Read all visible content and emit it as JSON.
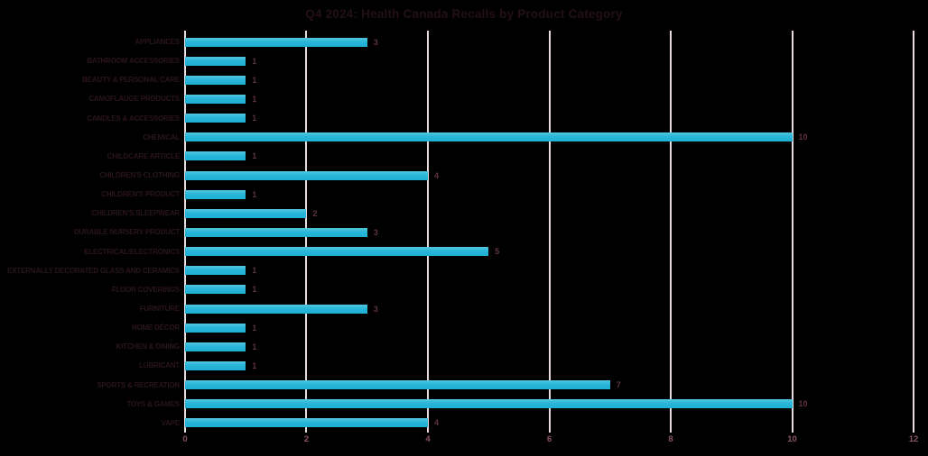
{
  "title": "Q4 2024: Health Canada Recalls by Product Category",
  "colors": {
    "background": "#000000",
    "bar": "#29b6d8",
    "gridline": "#e6dce0",
    "title_text": "#231014",
    "category_label_text": "#2a151b",
    "value_label_text": "#5d3344",
    "axis_label_text": "#8b5468"
  },
  "chart_data": {
    "type": "bar",
    "orientation": "horizontal",
    "title": "Q4 2024: Health Canada Recalls by Product Category",
    "categories": [
      "APPLIANCES",
      "BATHROOM ACCESSORIES",
      "BEAUTY & PERSONAL CARE",
      "CAMOFLAUGE PRODUCTS",
      "CANDLES & ACCESSORIES",
      "CHEMICAL",
      "CHILDCARE ARTICLE",
      "CHILDREN'S CLOTHING",
      "CHILDREN'S PRODUCT",
      "CHILDREN'S SLEEPWEAR",
      "DURABLE NURSERY PRODUCT",
      "ELECTRICAL/ELECTRONICS",
      "EXTERNALLY DECORATED GLASS AND CERAMICS",
      "FLOOR COVERINGS",
      "FURNITURE",
      "HOME DÉCOR",
      "KITCHEN & DINING",
      "LUBRICANT",
      "SPORTS & RECREATION",
      "TOYS & GAMES",
      "VAPE"
    ],
    "values": [
      3,
      1,
      1,
      1,
      1,
      10,
      1,
      4,
      1,
      2,
      3,
      5,
      1,
      1,
      3,
      1,
      1,
      1,
      7,
      10,
      4
    ],
    "xlabel": "",
    "ylabel": "",
    "xlim": [
      0,
      12
    ],
    "x_ticks": [
      0,
      2,
      4,
      6,
      8,
      10,
      12
    ],
    "grid": true,
    "legend": false,
    "data_labels": true
  }
}
